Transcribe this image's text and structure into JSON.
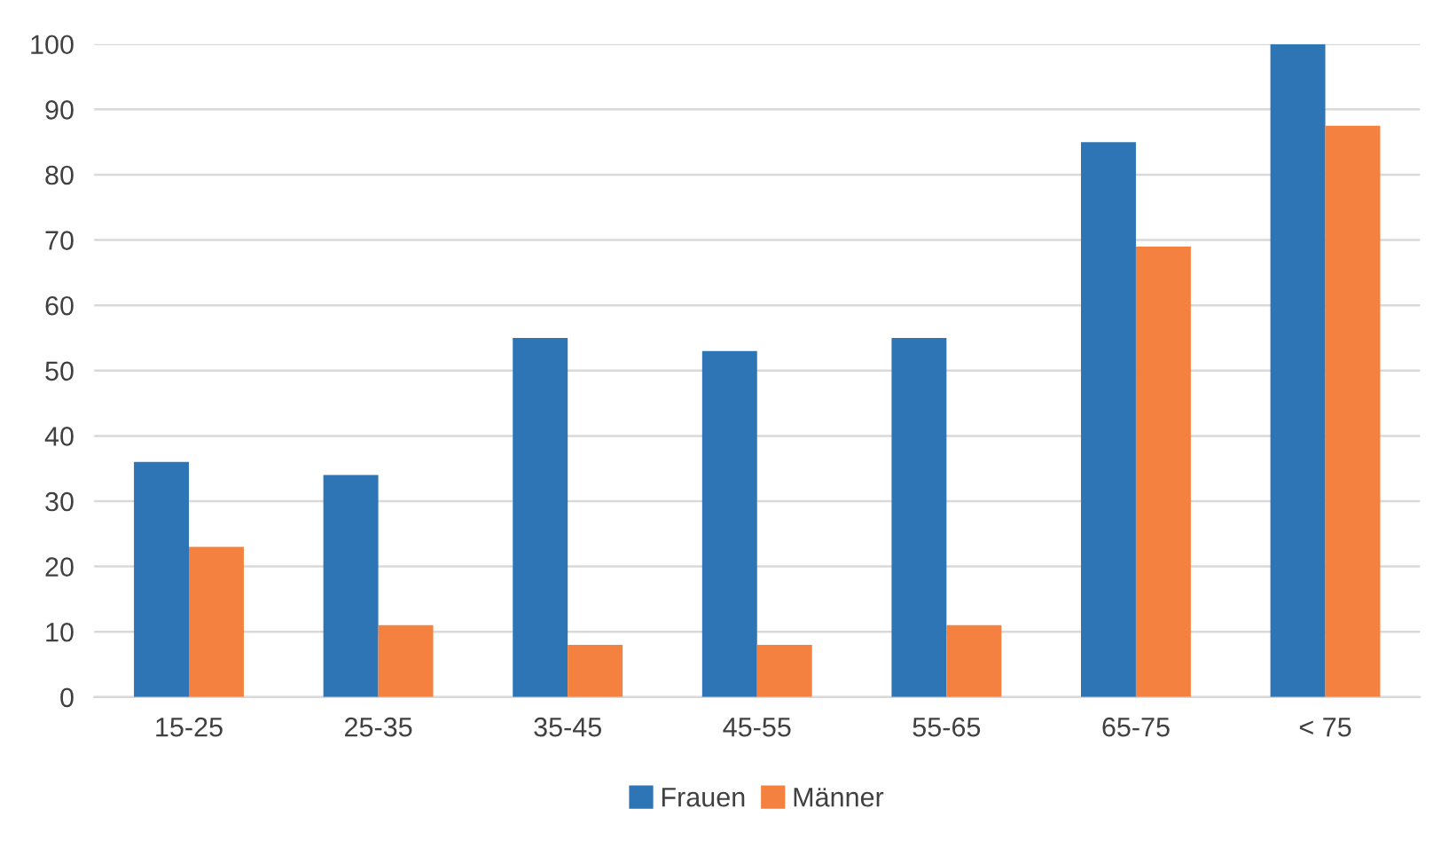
{
  "chart_data": {
    "type": "bar",
    "categories": [
      "15-25",
      "25-35",
      "35-45",
      "45-55",
      "55-65",
      "65-75",
      "< 75"
    ],
    "series": [
      {
        "name": "Frauen",
        "color": "#2e75b6",
        "values": [
          36,
          34,
          55,
          53,
          55,
          85,
          100
        ]
      },
      {
        "name": "Männer",
        "color": "#f4813f",
        "values": [
          23,
          11,
          8,
          8,
          11,
          69,
          87.5
        ]
      }
    ],
    "ylim": [
      0,
      100
    ],
    "yticks": [
      0,
      10,
      20,
      30,
      40,
      50,
      60,
      70,
      80,
      90,
      100
    ],
    "grid": "y",
    "legend": "bottom"
  }
}
